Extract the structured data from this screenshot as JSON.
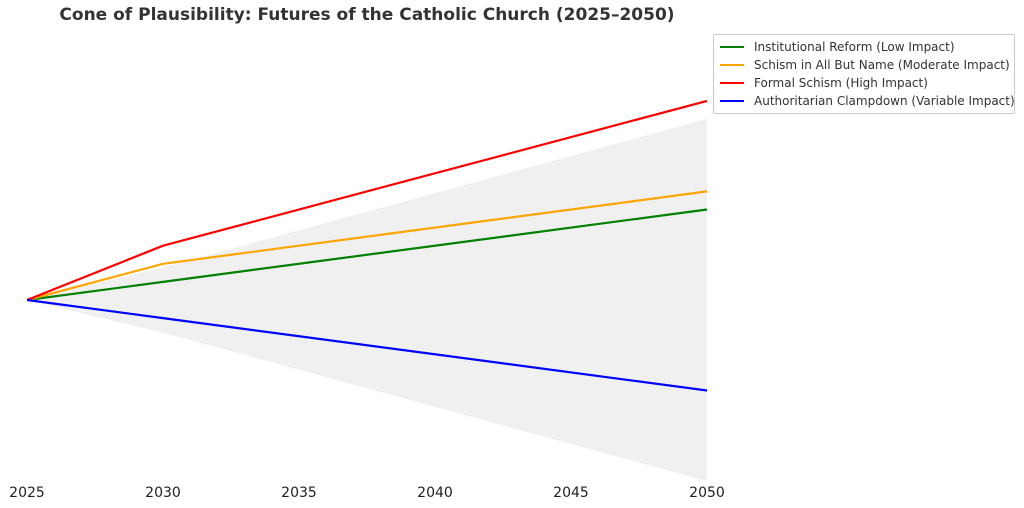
{
  "chart_data": {
    "type": "line",
    "title": "Cone of Plausibility: Futures of the Catholic Church (2025–2050)",
    "xlabel": "",
    "ylabel": "",
    "x": [
      2025,
      2030,
      2050
    ],
    "xticks": [
      "2025",
      "2030",
      "2035",
      "2040",
      "2045",
      "2050"
    ],
    "xlim": [
      2025,
      2050
    ],
    "ylim": [
      -1,
      1
    ],
    "grid": false,
    "legend_position": "top-right",
    "cone": {
      "color": "#f0f0f0",
      "upper": [
        0,
        0.18,
        1.0
      ],
      "lower": [
        0,
        -0.18,
        -1.0
      ]
    },
    "series": [
      {
        "name": "Institutional Reform (Low Impact)",
        "color": "#008000",
        "values": [
          0,
          0.1,
          0.5
        ]
      },
      {
        "name": "Schism in All But Name (Moderate Impact)",
        "color": "#ffa500",
        "values": [
          0,
          0.2,
          0.6
        ]
      },
      {
        "name": "Formal Schism (High Impact)",
        "color": "#ff0000",
        "values": [
          0,
          0.3,
          1.1
        ]
      },
      {
        "name": "Authoritarian Clampdown (Variable Impact)",
        "color": "#0000ff",
        "values": [
          0,
          -0.1,
          -0.5
        ]
      }
    ]
  }
}
